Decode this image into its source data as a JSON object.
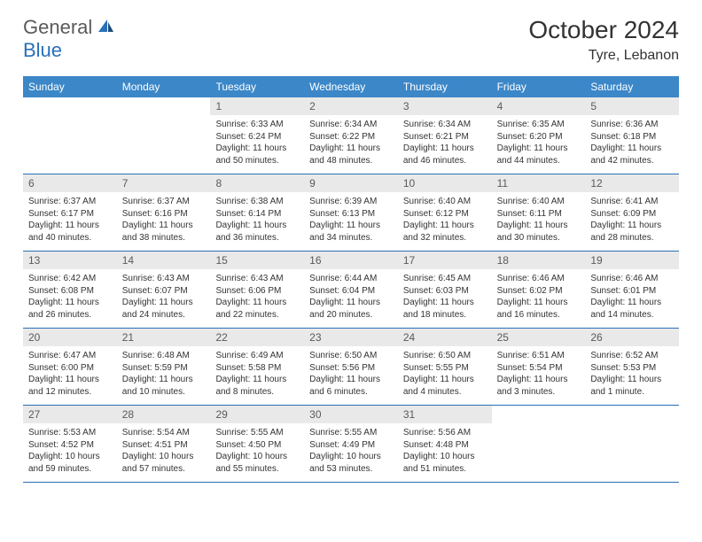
{
  "brand": {
    "part1": "General",
    "part2": "Blue"
  },
  "title": "October 2024",
  "location": "Tyre, Lebanon",
  "colors": {
    "header_bg": "#3b87c8",
    "header_text": "#ffffff",
    "daynum_bg": "#e9e9e9",
    "daynum_text": "#5a5a5a",
    "body_text": "#333333",
    "rule": "#2970b8",
    "logo_gray": "#5a5a5a",
    "logo_blue": "#2970b8",
    "page_bg": "#ffffff"
  },
  "day_headers": [
    "Sunday",
    "Monday",
    "Tuesday",
    "Wednesday",
    "Thursday",
    "Friday",
    "Saturday"
  ],
  "weeks": [
    [
      {
        "n": "",
        "sr": "",
        "ss": "",
        "dl": ""
      },
      {
        "n": "",
        "sr": "",
        "ss": "",
        "dl": ""
      },
      {
        "n": "1",
        "sr": "Sunrise: 6:33 AM",
        "ss": "Sunset: 6:24 PM",
        "dl": "Daylight: 11 hours and 50 minutes."
      },
      {
        "n": "2",
        "sr": "Sunrise: 6:34 AM",
        "ss": "Sunset: 6:22 PM",
        "dl": "Daylight: 11 hours and 48 minutes."
      },
      {
        "n": "3",
        "sr": "Sunrise: 6:34 AM",
        "ss": "Sunset: 6:21 PM",
        "dl": "Daylight: 11 hours and 46 minutes."
      },
      {
        "n": "4",
        "sr": "Sunrise: 6:35 AM",
        "ss": "Sunset: 6:20 PM",
        "dl": "Daylight: 11 hours and 44 minutes."
      },
      {
        "n": "5",
        "sr": "Sunrise: 6:36 AM",
        "ss": "Sunset: 6:18 PM",
        "dl": "Daylight: 11 hours and 42 minutes."
      }
    ],
    [
      {
        "n": "6",
        "sr": "Sunrise: 6:37 AM",
        "ss": "Sunset: 6:17 PM",
        "dl": "Daylight: 11 hours and 40 minutes."
      },
      {
        "n": "7",
        "sr": "Sunrise: 6:37 AM",
        "ss": "Sunset: 6:16 PM",
        "dl": "Daylight: 11 hours and 38 minutes."
      },
      {
        "n": "8",
        "sr": "Sunrise: 6:38 AM",
        "ss": "Sunset: 6:14 PM",
        "dl": "Daylight: 11 hours and 36 minutes."
      },
      {
        "n": "9",
        "sr": "Sunrise: 6:39 AM",
        "ss": "Sunset: 6:13 PM",
        "dl": "Daylight: 11 hours and 34 minutes."
      },
      {
        "n": "10",
        "sr": "Sunrise: 6:40 AM",
        "ss": "Sunset: 6:12 PM",
        "dl": "Daylight: 11 hours and 32 minutes."
      },
      {
        "n": "11",
        "sr": "Sunrise: 6:40 AM",
        "ss": "Sunset: 6:11 PM",
        "dl": "Daylight: 11 hours and 30 minutes."
      },
      {
        "n": "12",
        "sr": "Sunrise: 6:41 AM",
        "ss": "Sunset: 6:09 PM",
        "dl": "Daylight: 11 hours and 28 minutes."
      }
    ],
    [
      {
        "n": "13",
        "sr": "Sunrise: 6:42 AM",
        "ss": "Sunset: 6:08 PM",
        "dl": "Daylight: 11 hours and 26 minutes."
      },
      {
        "n": "14",
        "sr": "Sunrise: 6:43 AM",
        "ss": "Sunset: 6:07 PM",
        "dl": "Daylight: 11 hours and 24 minutes."
      },
      {
        "n": "15",
        "sr": "Sunrise: 6:43 AM",
        "ss": "Sunset: 6:06 PM",
        "dl": "Daylight: 11 hours and 22 minutes."
      },
      {
        "n": "16",
        "sr": "Sunrise: 6:44 AM",
        "ss": "Sunset: 6:04 PM",
        "dl": "Daylight: 11 hours and 20 minutes."
      },
      {
        "n": "17",
        "sr": "Sunrise: 6:45 AM",
        "ss": "Sunset: 6:03 PM",
        "dl": "Daylight: 11 hours and 18 minutes."
      },
      {
        "n": "18",
        "sr": "Sunrise: 6:46 AM",
        "ss": "Sunset: 6:02 PM",
        "dl": "Daylight: 11 hours and 16 minutes."
      },
      {
        "n": "19",
        "sr": "Sunrise: 6:46 AM",
        "ss": "Sunset: 6:01 PM",
        "dl": "Daylight: 11 hours and 14 minutes."
      }
    ],
    [
      {
        "n": "20",
        "sr": "Sunrise: 6:47 AM",
        "ss": "Sunset: 6:00 PM",
        "dl": "Daylight: 11 hours and 12 minutes."
      },
      {
        "n": "21",
        "sr": "Sunrise: 6:48 AM",
        "ss": "Sunset: 5:59 PM",
        "dl": "Daylight: 11 hours and 10 minutes."
      },
      {
        "n": "22",
        "sr": "Sunrise: 6:49 AM",
        "ss": "Sunset: 5:58 PM",
        "dl": "Daylight: 11 hours and 8 minutes."
      },
      {
        "n": "23",
        "sr": "Sunrise: 6:50 AM",
        "ss": "Sunset: 5:56 PM",
        "dl": "Daylight: 11 hours and 6 minutes."
      },
      {
        "n": "24",
        "sr": "Sunrise: 6:50 AM",
        "ss": "Sunset: 5:55 PM",
        "dl": "Daylight: 11 hours and 4 minutes."
      },
      {
        "n": "25",
        "sr": "Sunrise: 6:51 AM",
        "ss": "Sunset: 5:54 PM",
        "dl": "Daylight: 11 hours and 3 minutes."
      },
      {
        "n": "26",
        "sr": "Sunrise: 6:52 AM",
        "ss": "Sunset: 5:53 PM",
        "dl": "Daylight: 11 hours and 1 minute."
      }
    ],
    [
      {
        "n": "27",
        "sr": "Sunrise: 5:53 AM",
        "ss": "Sunset: 4:52 PM",
        "dl": "Daylight: 10 hours and 59 minutes."
      },
      {
        "n": "28",
        "sr": "Sunrise: 5:54 AM",
        "ss": "Sunset: 4:51 PM",
        "dl": "Daylight: 10 hours and 57 minutes."
      },
      {
        "n": "29",
        "sr": "Sunrise: 5:55 AM",
        "ss": "Sunset: 4:50 PM",
        "dl": "Daylight: 10 hours and 55 minutes."
      },
      {
        "n": "30",
        "sr": "Sunrise: 5:55 AM",
        "ss": "Sunset: 4:49 PM",
        "dl": "Daylight: 10 hours and 53 minutes."
      },
      {
        "n": "31",
        "sr": "Sunrise: 5:56 AM",
        "ss": "Sunset: 4:48 PM",
        "dl": "Daylight: 10 hours and 51 minutes."
      },
      {
        "n": "",
        "sr": "",
        "ss": "",
        "dl": ""
      },
      {
        "n": "",
        "sr": "",
        "ss": "",
        "dl": ""
      }
    ]
  ]
}
